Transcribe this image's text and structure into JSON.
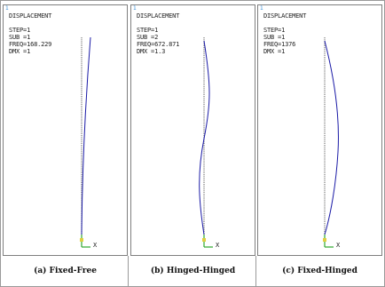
{
  "panels": [
    {
      "corner": "1",
      "title": "DISPLACEMENT",
      "step": "STEP=1",
      "sub": "SUB =1",
      "freq": "FREQ=168.229",
      "dmx": "DMX =1",
      "axis_label": "X",
      "caption": "(a) Fixed-Free"
    },
    {
      "corner": "1",
      "title": "DISPLACEMENT",
      "step": "STEP=1",
      "sub": "SUB =2",
      "freq": "FREQ=672.871",
      "dmx": "DMX =1.3",
      "axis_label": "X",
      "caption": "(b) Hinged-Hinged"
    },
    {
      "corner": "1",
      "title": "DISPLACEMENT",
      "step": "STEP=1",
      "sub": "SUB =1",
      "freq": "FREQ=1376",
      "dmx": "DMX =1",
      "axis_label": "X",
      "caption": "(c) Fixed-Hinged"
    }
  ],
  "colors": {
    "deformed": "#1a1aa6",
    "undeformed": "#7a7a7a",
    "axis_green": "#2fa82f",
    "marker_yellow": "#e0d040",
    "corner_blue": "#3a8fd6"
  }
}
